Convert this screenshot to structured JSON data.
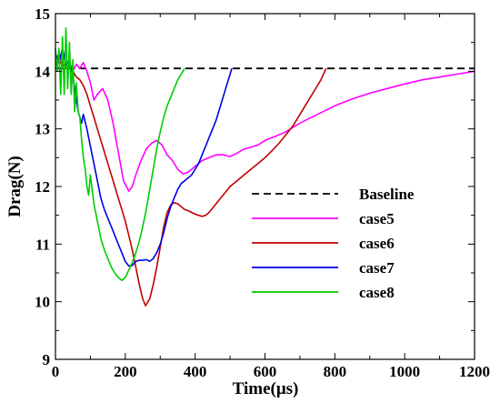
{
  "chart_data": {
    "type": "line",
    "title": "",
    "xlabel": "Time(μs)",
    "ylabel": "Drag(N)",
    "xlim": [
      0,
      1200
    ],
    "ylim": [
      9,
      15
    ],
    "xticks": [
      0,
      200,
      400,
      600,
      800,
      1000,
      1200
    ],
    "yticks": [
      9,
      10,
      11,
      12,
      13,
      14,
      15
    ],
    "grid": false,
    "legend": "right",
    "series": [
      {
        "name": "Baseline",
        "color": "#000000",
        "dash": "dashed",
        "x": [
          0,
          1200
        ],
        "y": [
          14.05,
          14.05
        ]
      },
      {
        "name": "case5",
        "color": "#ff00ff",
        "dash": "solid",
        "x": [
          0,
          10,
          20,
          30,
          40,
          50,
          60,
          70,
          80,
          90,
          100,
          110,
          120,
          135,
          150,
          165,
          180,
          195,
          210,
          220,
          230,
          245,
          260,
          275,
          290,
          305,
          320,
          335,
          350,
          365,
          380,
          400,
          420,
          440,
          460,
          480,
          500,
          520,
          540,
          560,
          580,
          600,
          630,
          660,
          700,
          750,
          800,
          850,
          900,
          950,
          1000,
          1050,
          1100,
          1150,
          1200
        ],
        "y": [
          14.2,
          14.3,
          14.15,
          14.05,
          14.1,
          14.0,
          14.12,
          14.05,
          14.15,
          14.0,
          13.8,
          13.5,
          13.6,
          13.7,
          13.5,
          13.1,
          12.6,
          12.1,
          11.92,
          12.0,
          12.2,
          12.45,
          12.65,
          12.75,
          12.8,
          12.72,
          12.55,
          12.45,
          12.3,
          12.22,
          12.25,
          12.35,
          12.45,
          12.5,
          12.55,
          12.55,
          12.52,
          12.58,
          12.65,
          12.68,
          12.72,
          12.8,
          12.87,
          12.95,
          13.1,
          13.25,
          13.4,
          13.52,
          13.62,
          13.7,
          13.78,
          13.85,
          13.9,
          13.95,
          14.0
        ]
      },
      {
        "name": "case6",
        "color": "#c00000",
        "dash": "solid",
        "x": [
          0,
          10,
          20,
          30,
          40,
          50,
          60,
          70,
          80,
          90,
          100,
          110,
          120,
          130,
          140,
          150,
          160,
          170,
          180,
          190,
          200,
          210,
          220,
          230,
          240,
          250,
          258,
          270,
          280,
          290,
          300,
          310,
          320,
          330,
          340,
          350,
          360,
          370,
          380,
          390,
          400,
          410,
          420,
          430,
          440,
          460,
          480,
          500,
          520,
          540,
          560,
          580,
          600,
          620,
          640,
          660,
          680,
          700,
          720,
          740,
          760,
          775
        ],
        "y": [
          14.3,
          14.2,
          14.1,
          14.05,
          14.1,
          14.0,
          13.9,
          13.85,
          13.75,
          13.6,
          13.4,
          13.2,
          13.0,
          12.8,
          12.6,
          12.4,
          12.2,
          12.0,
          11.8,
          11.6,
          11.4,
          11.15,
          10.9,
          10.6,
          10.3,
          10.05,
          9.93,
          10.05,
          10.3,
          10.6,
          10.95,
          11.3,
          11.55,
          11.68,
          11.72,
          11.7,
          11.65,
          11.6,
          11.58,
          11.55,
          11.52,
          11.5,
          11.48,
          11.5,
          11.55,
          11.7,
          11.85,
          12.0,
          12.1,
          12.2,
          12.3,
          12.4,
          12.5,
          12.62,
          12.75,
          12.9,
          13.05,
          13.25,
          13.45,
          13.65,
          13.85,
          14.05
        ]
      },
      {
        "name": "case7",
        "color": "#0000e6",
        "dash": "solid",
        "x": [
          0,
          10,
          20,
          30,
          40,
          50,
          55,
          60,
          65,
          70,
          75,
          80,
          90,
          100,
          110,
          120,
          130,
          140,
          150,
          160,
          170,
          180,
          190,
          200,
          210,
          220,
          230,
          240,
          250,
          260,
          270,
          280,
          290,
          300,
          310,
          320,
          330,
          340,
          350,
          360,
          370,
          380,
          390,
          400,
          410,
          420,
          430,
          440,
          450,
          460,
          470,
          480,
          490,
          500,
          505
        ],
        "y": [
          14.3,
          14.15,
          14.4,
          14.1,
          14.2,
          13.9,
          13.7,
          13.5,
          13.3,
          13.2,
          13.1,
          13.25,
          13.0,
          12.7,
          12.4,
          12.1,
          11.8,
          11.6,
          11.45,
          11.3,
          11.15,
          11.0,
          10.85,
          10.7,
          10.62,
          10.63,
          10.7,
          10.72,
          10.72,
          10.73,
          10.7,
          10.75,
          10.85,
          11.0,
          11.2,
          11.45,
          11.65,
          11.8,
          11.95,
          12.05,
          12.1,
          12.15,
          12.2,
          12.3,
          12.4,
          12.55,
          12.7,
          12.85,
          13.0,
          13.15,
          13.35,
          13.55,
          13.75,
          13.95,
          14.05
        ]
      },
      {
        "name": "case8",
        "color": "#00cc00",
        "dash": "solid",
        "x": [
          0,
          5,
          10,
          15,
          20,
          25,
          30,
          35,
          40,
          45,
          50,
          55,
          60,
          65,
          70,
          75,
          80,
          85,
          90,
          95,
          100,
          110,
          120,
          130,
          140,
          150,
          160,
          170,
          180,
          190,
          200,
          210,
          220,
          230,
          240,
          250,
          260,
          270,
          280,
          290,
          300,
          310,
          320,
          330,
          340,
          350,
          360,
          370
        ],
        "y": [
          14.4,
          14.0,
          14.4,
          13.6,
          14.6,
          13.6,
          14.75,
          13.7,
          14.5,
          13.6,
          14.2,
          13.3,
          13.8,
          13.3,
          13.2,
          12.8,
          12.5,
          12.3,
          12.0,
          11.85,
          12.2,
          11.7,
          11.4,
          11.1,
          10.9,
          10.75,
          10.6,
          10.5,
          10.42,
          10.37,
          10.42,
          10.55,
          10.68,
          10.85,
          11.05,
          11.3,
          11.6,
          11.95,
          12.3,
          12.65,
          12.95,
          13.2,
          13.4,
          13.55,
          13.7,
          13.85,
          13.95,
          14.05
        ]
      }
    ]
  }
}
